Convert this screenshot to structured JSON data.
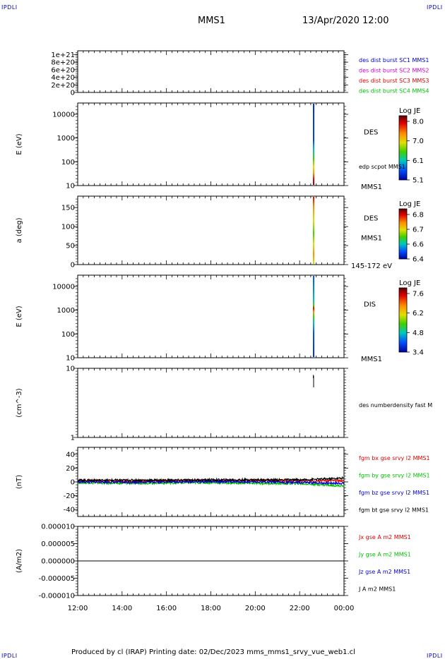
{
  "header": {
    "corner_tl": "IPDLI",
    "corner_tr": "IPDLI",
    "corner_bl": "IPDLI",
    "corner_br": "IPDLI",
    "spacecraft": "MMS1",
    "date": "13/Apr/2020 12:00"
  },
  "footer": {
    "text": "Produced by cl (IRAP)   Printing date: 02/Dec/2023   mms_mms1_srvy_vue_web1.cl"
  },
  "time_axis": {
    "ticks": [
      "12:00",
      "14:00",
      "16:00",
      "18:00",
      "20:00",
      "22:00",
      "00:00"
    ],
    "hours": [
      12,
      14,
      16,
      18,
      20,
      22,
      24
    ],
    "range": [
      12,
      24
    ]
  },
  "chart_data": [
    {
      "type": "line",
      "panel": "des_dist_burst",
      "ylim": [
        0,
        1.1e+21
      ],
      "yticks": [
        {
          "v": 1e+21,
          "label": "1e+21"
        },
        {
          "v": 8e+20,
          "label": "8e+20"
        },
        {
          "v": 6e+20,
          "label": "6e+20"
        },
        {
          "v": 4e+20,
          "label": "4e+20"
        },
        {
          "v": 2e+20,
          "label": "2e+20"
        },
        {
          "v": 0,
          "label": "0"
        }
      ],
      "ylabel": "",
      "reference_line": 0,
      "legend": [
        {
          "name": "des dist burst SC1 MMS1",
          "color": "#0000d0"
        },
        {
          "name": "des dist burst SC2 MMS2",
          "color": "#d000d0"
        },
        {
          "name": "des dist burst SC3 MMS3",
          "color": "#e00000"
        },
        {
          "name": "des dist burst SC4 MMS4",
          "color": "#00c000"
        }
      ]
    },
    {
      "type": "heatmap",
      "panel": "des_energy_spectrogram",
      "ylabel": "E (eV)",
      "yscale": "log",
      "ylim": [
        10,
        30000
      ],
      "yticks": [
        {
          "v": 10000,
          "label": "10000"
        },
        {
          "v": 1000,
          "label": "1000"
        },
        {
          "v": 100,
          "label": "100"
        },
        {
          "v": 10,
          "label": "10"
        }
      ],
      "data_interval_hours": [
        22.6,
        22.65
      ],
      "instrument_label": "DES",
      "extra_label": "edp scpot MMS1",
      "sc_label": "MMS1",
      "colorbar": {
        "title": "Log JE",
        "ticks": [
          "8.0",
          "7.0",
          "6.1",
          "5.1"
        ]
      }
    },
    {
      "type": "heatmap",
      "panel": "des_pitch_angle",
      "ylabel": "a (deg)",
      "ylim": [
        0,
        180
      ],
      "yticks": [
        {
          "v": 150,
          "label": "150"
        },
        {
          "v": 100,
          "label": "100"
        },
        {
          "v": 50,
          "label": "50"
        },
        {
          "v": 0,
          "label": "0"
        }
      ],
      "data_interval_hours": [
        22.6,
        22.65
      ],
      "instrument_label": "DES",
      "sc_label": "MMS1",
      "energy_range_label": "145-172 eV",
      "colorbar": {
        "title": "Log JE",
        "ticks": [
          "6.8",
          "6.7",
          "6.6",
          "6.4"
        ]
      }
    },
    {
      "type": "heatmap",
      "panel": "dis_energy_spectrogram",
      "ylabel": "E (eV)",
      "yscale": "log",
      "ylim": [
        10,
        30000
      ],
      "yticks": [
        {
          "v": 10000,
          "label": "10000"
        },
        {
          "v": 1000,
          "label": "1000"
        },
        {
          "v": 100,
          "label": "100"
        },
        {
          "v": 10,
          "label": "10"
        }
      ],
      "data_interval_hours": [
        22.6,
        22.65
      ],
      "instrument_label": "DIS",
      "sc_label": "MMS1",
      "colorbar": {
        "title": "Log JE",
        "ticks": [
          "7.6",
          "6.2",
          "4.8",
          "3.4"
        ]
      }
    },
    {
      "type": "line",
      "panel": "des_numberdensity",
      "ylabel": "(cm^-3)",
      "yscale": "log",
      "ylim": [
        1,
        10
      ],
      "yticks": [
        {
          "v": 10,
          "label": "10"
        },
        {
          "v": 1,
          "label": "1"
        }
      ],
      "series": [
        {
          "name": "des numberdensity fast M",
          "color": "#000000",
          "x": [
            22.62,
            22.62,
            22.63,
            22.63
          ],
          "y": [
            7.2,
            8.0,
            7.6,
            5.3
          ]
        }
      ]
    },
    {
      "type": "line",
      "panel": "fgm_b_gse",
      "ylabel": "(nT)",
      "ylim": [
        -50,
        50
      ],
      "yticks": [
        {
          "v": 40,
          "label": "40"
        },
        {
          "v": 20,
          "label": "20"
        },
        {
          "v": 0,
          "label": "0"
        },
        {
          "v": -20,
          "label": "-20"
        },
        {
          "v": -40,
          "label": "-40"
        }
      ],
      "series": [
        {
          "name": "fgm bx gse srvy l2 MMS1",
          "color": "#e00000",
          "x": [
            12,
            14,
            16,
            18,
            20,
            22,
            23,
            24
          ],
          "y": [
            2,
            1,
            1.5,
            2,
            2.5,
            1.5,
            2,
            1.5
          ]
        },
        {
          "name": "fgm by gse srvy l2 MMS1",
          "color": "#00c000",
          "x": [
            12,
            14,
            16,
            18,
            20,
            22,
            23,
            24
          ],
          "y": [
            -1,
            -2,
            -1.5,
            -1,
            -2,
            -2.5,
            -4,
            -6
          ]
        },
        {
          "name": "fgm bz gse srvy l2 MMS1",
          "color": "#0000d0",
          "x": [
            12,
            14,
            16,
            18,
            20,
            22,
            23,
            24
          ],
          "y": [
            0,
            -0.5,
            0,
            0.5,
            0,
            -1,
            -1.5,
            -2
          ]
        },
        {
          "name": "fgm bt gse srvy l2 MMS1",
          "color": "#000000",
          "x": [
            12,
            14,
            16,
            18,
            20,
            22,
            23,
            24
          ],
          "y": [
            2.5,
            2.5,
            2.5,
            3,
            3,
            3,
            4,
            5.5
          ]
        }
      ]
    },
    {
      "type": "line",
      "panel": "curlometer_current",
      "ylabel": "(A/m2)",
      "ylim": [
        -1e-05,
        1e-05
      ],
      "yticks": [
        {
          "v": 1e-05,
          "label": "0.000010"
        },
        {
          "v": 5e-06,
          "label": "0.000005"
        },
        {
          "v": 0,
          "label": "0.000000"
        },
        {
          "v": -5e-06,
          "label": "-0.000005"
        },
        {
          "v": -1e-05,
          "label": "-0.000010"
        }
      ],
      "series": [
        {
          "name": "Jx gse A m2 MMS1",
          "color": "#e00000",
          "x": [
            12,
            24
          ],
          "y": [
            0,
            0
          ]
        },
        {
          "name": "Jy gse A m2 MMS1",
          "color": "#00c000",
          "x": [
            12,
            24
          ],
          "y": [
            0,
            0
          ]
        },
        {
          "name": "Jz gse A m2 MMS1",
          "color": "#0000d0",
          "x": [
            12,
            24
          ],
          "y": [
            0,
            0
          ]
        },
        {
          "name": "J A m2 MMS1",
          "color": "#000000",
          "x": [
            12,
            24
          ],
          "y": [
            0,
            0
          ]
        }
      ]
    }
  ]
}
